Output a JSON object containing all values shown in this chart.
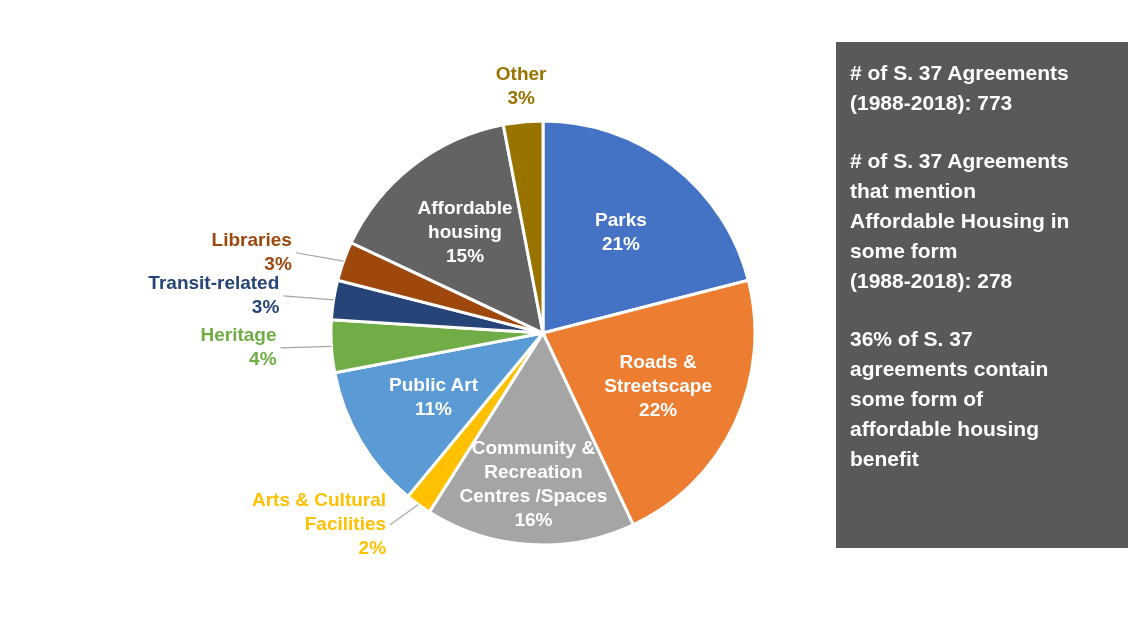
{
  "chart_data": [
    {
      "type": "pie",
      "categories": [
        "Parks",
        "Roads & Streetscape",
        "Community & Recreation Centres /Spaces",
        "Arts & Cultural Facilities",
        "Public Art",
        "Heritage",
        "Transit-related",
        "Libraries",
        "Affordable housing",
        "Other"
      ],
      "values": [
        21,
        22,
        16,
        2,
        11,
        4,
        3,
        3,
        15,
        3
      ],
      "colors": [
        "#4472c4",
        "#ed7d31",
        "#a5a5a5",
        "#ffc000",
        "#5b9bd5",
        "#70ad47",
        "#264478",
        "#9e480e",
        "#636363",
        "#997300"
      ],
      "value_labels": [
        "21%",
        "22%",
        "16%",
        "2%",
        "11%",
        "4%",
        "3%",
        "3%",
        "15%",
        "3%"
      ]
    },
    {
      "type": "other",
      "annotations": [
        "# of S. 37 Agreements (1988-2018): 773",
        "# of S. 37 Agreements that mention Affordable Housing in some form (1988-2018):  278",
        "36% of S. 37 agreements contain some form of affordable housing benefit"
      ]
    }
  ]
}
